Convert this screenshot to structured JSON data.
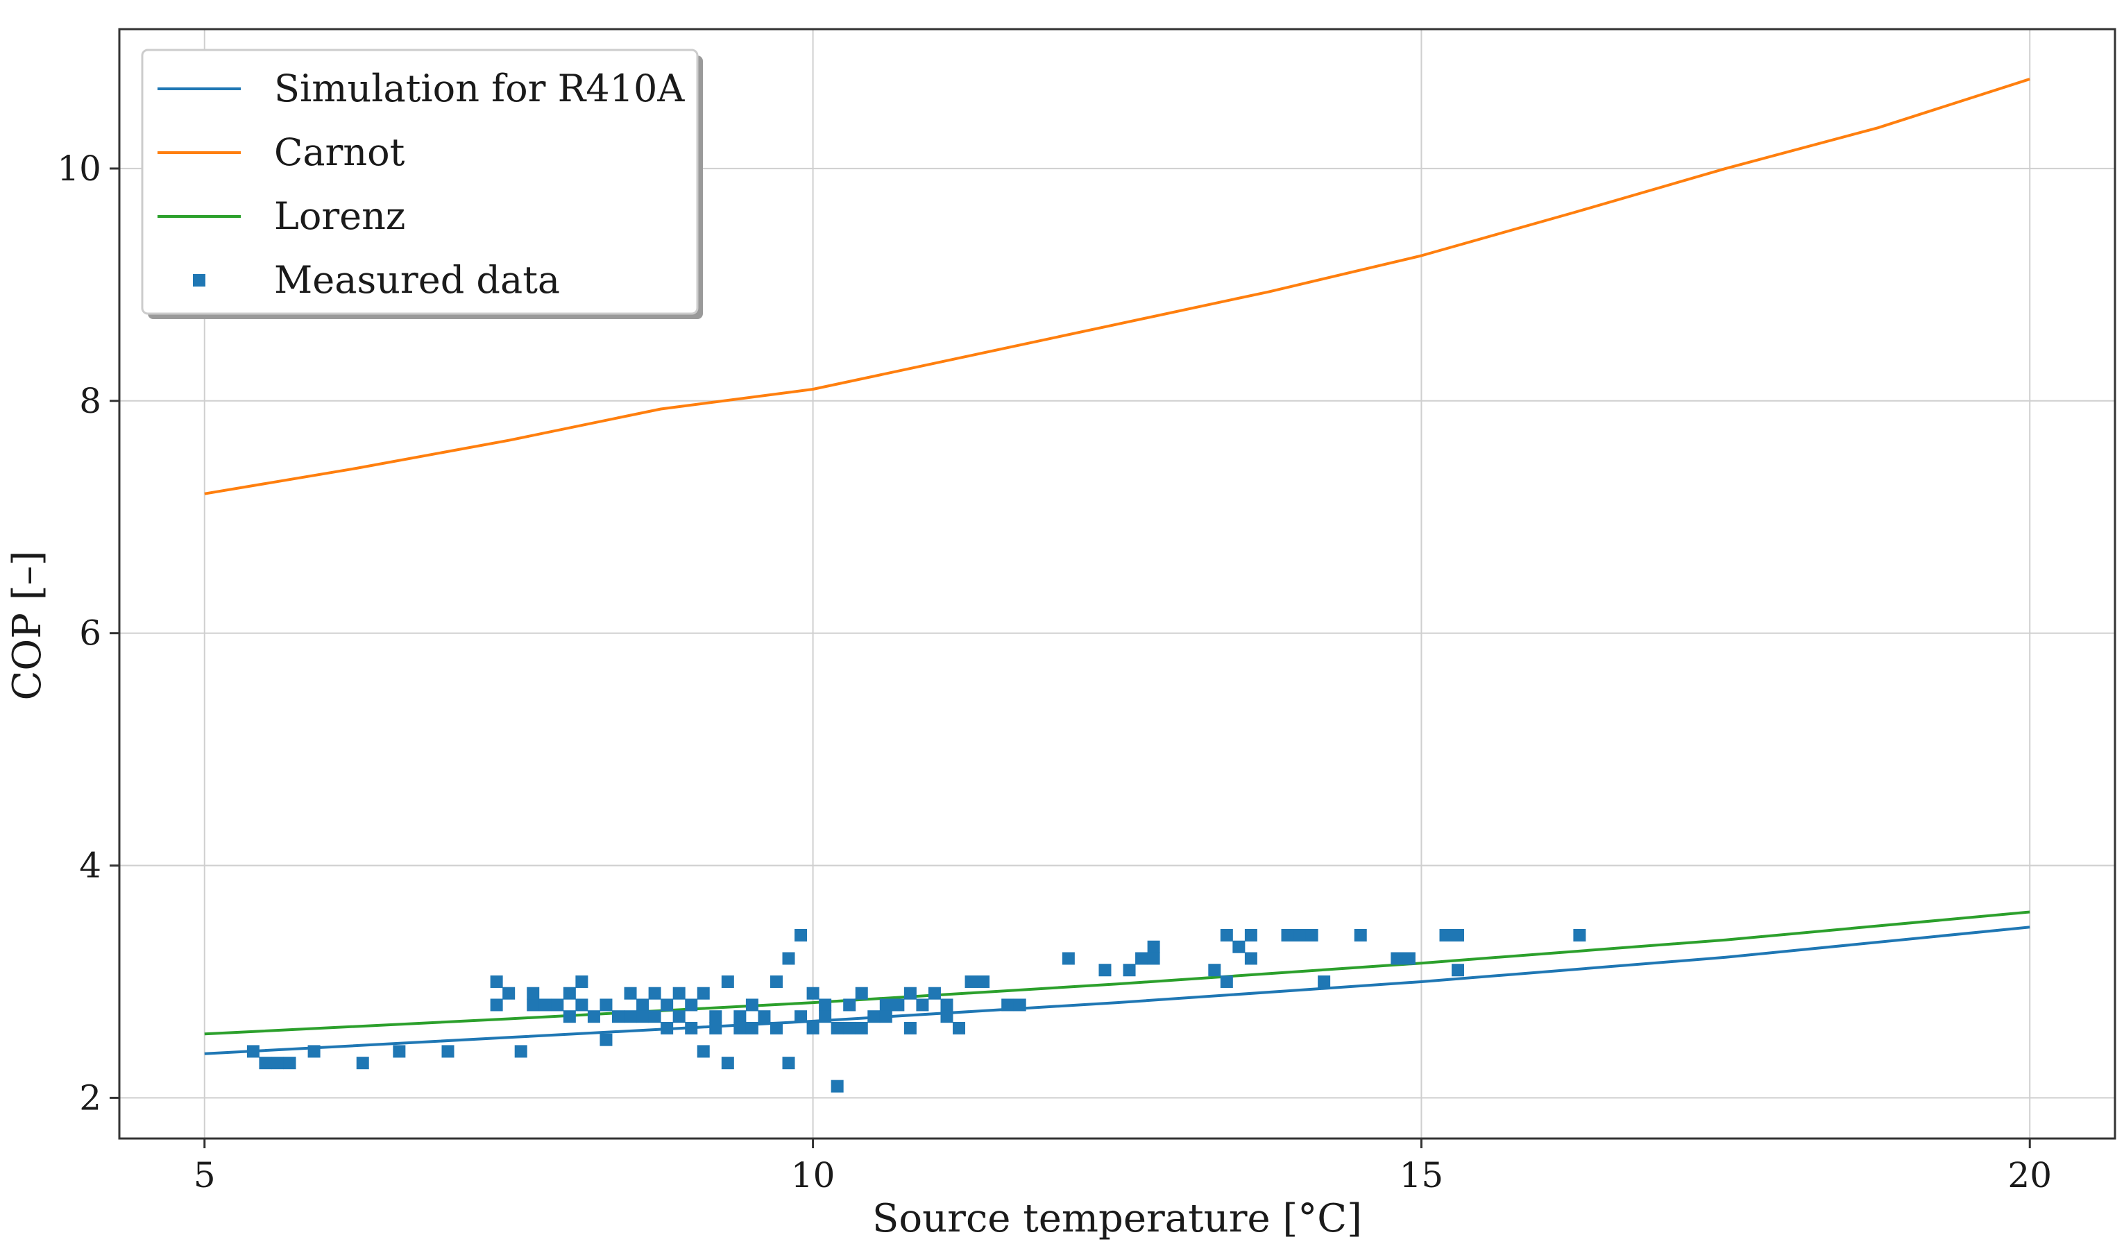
{
  "chart_data": {
    "type": "line",
    "title": "",
    "xlabel": "Source temperature [°C]",
    "ylabel": "COP [–]",
    "xlim": [
      4.3,
      20.7
    ],
    "ylim": [
      1.65,
      11.2
    ],
    "xticks": [
      5,
      10,
      15,
      20
    ],
    "yticks": [
      2,
      4,
      6,
      8,
      10
    ],
    "grid": true,
    "legend_position": "top-left",
    "colors": {
      "simulation": "#1f77b4",
      "carnot": "#ff7f0e",
      "lorenz": "#2ca02c",
      "measured": "#1f77b4"
    },
    "series": [
      {
        "name": "Simulation for R410A",
        "kind": "line",
        "color_key": "simulation",
        "x": [
          5,
          7.5,
          10,
          12.5,
          15,
          17.5,
          20
        ],
        "y": [
          2.38,
          2.52,
          2.66,
          2.82,
          3.0,
          3.21,
          3.47
        ]
      },
      {
        "name": "Carnot",
        "kind": "line",
        "color_key": "carnot",
        "x": [
          5,
          6.25,
          7.5,
          8.75,
          10,
          11.25,
          12.5,
          13.75,
          15,
          16.25,
          17.5,
          18.75,
          20
        ],
        "y": [
          7.2,
          7.42,
          7.66,
          7.93,
          8.1,
          8.38,
          8.66,
          8.94,
          9.25,
          9.62,
          10.0,
          10.35,
          10.77
        ]
      },
      {
        "name": "Lorenz",
        "kind": "line",
        "color_key": "lorenz",
        "x": [
          5,
          7.5,
          10,
          12.5,
          15,
          17.5,
          20
        ],
        "y": [
          2.55,
          2.68,
          2.82,
          2.98,
          3.16,
          3.36,
          3.6
        ]
      },
      {
        "name": "Measured data",
        "kind": "scatter",
        "color_key": "measured",
        "x": [
          5.4,
          5.5,
          5.6,
          5.7,
          5.9,
          6.3,
          6.6,
          7.0,
          7.4,
          7.4,
          7.5,
          7.6,
          7.7,
          7.7,
          7.8,
          7.9,
          8.0,
          8.0,
          8.1,
          8.1,
          8.2,
          8.3,
          8.3,
          8.4,
          8.5,
          8.5,
          8.6,
          8.6,
          8.7,
          8.7,
          8.8,
          8.8,
          8.9,
          8.9,
          9.0,
          9.0,
          9.1,
          9.1,
          9.2,
          9.2,
          9.3,
          9.3,
          9.4,
          9.4,
          9.5,
          9.5,
          9.6,
          9.7,
          9.7,
          9.8,
          9.8,
          9.9,
          9.9,
          10.0,
          10.0,
          10.1,
          10.1,
          10.2,
          10.2,
          10.3,
          10.3,
          10.4,
          10.4,
          10.5,
          10.6,
          10.6,
          10.7,
          10.8,
          10.8,
          10.9,
          11.0,
          11.1,
          11.1,
          11.2,
          11.3,
          11.4,
          11.6,
          11.7,
          12.1,
          12.4,
          12.6,
          12.7,
          12.8,
          12.8,
          13.3,
          13.4,
          13.4,
          13.5,
          13.6,
          13.6,
          13.9,
          14.0,
          14.1,
          14.2,
          14.5,
          14.8,
          14.9,
          15.2,
          15.3,
          15.3,
          16.3
        ],
        "y": [
          2.4,
          2.3,
          2.3,
          2.3,
          2.4,
          2.3,
          2.4,
          2.4,
          3.0,
          2.8,
          2.9,
          2.4,
          2.8,
          2.9,
          2.8,
          2.8,
          2.9,
          2.7,
          2.8,
          3.0,
          2.7,
          2.8,
          2.5,
          2.7,
          2.9,
          2.7,
          2.8,
          2.7,
          2.9,
          2.7,
          2.6,
          2.8,
          2.9,
          2.7,
          2.6,
          2.8,
          2.4,
          2.9,
          2.6,
          2.7,
          3.0,
          2.3,
          2.7,
          2.6,
          2.8,
          2.6,
          2.7,
          3.0,
          2.6,
          3.2,
          2.3,
          3.4,
          2.7,
          2.9,
          2.6,
          2.8,
          2.7,
          2.1,
          2.6,
          2.8,
          2.6,
          2.9,
          2.6,
          2.7,
          2.8,
          2.7,
          2.8,
          2.9,
          2.6,
          2.8,
          2.9,
          2.8,
          2.7,
          2.6,
          3.0,
          3.0,
          2.8,
          2.8,
          3.2,
          3.1,
          3.1,
          3.2,
          3.3,
          3.2,
          3.1,
          3.4,
          3.0,
          3.3,
          3.2,
          3.4,
          3.4,
          3.4,
          3.4,
          3.0,
          3.4,
          3.2,
          3.2,
          3.4,
          3.4,
          3.1,
          3.4
        ]
      }
    ]
  }
}
